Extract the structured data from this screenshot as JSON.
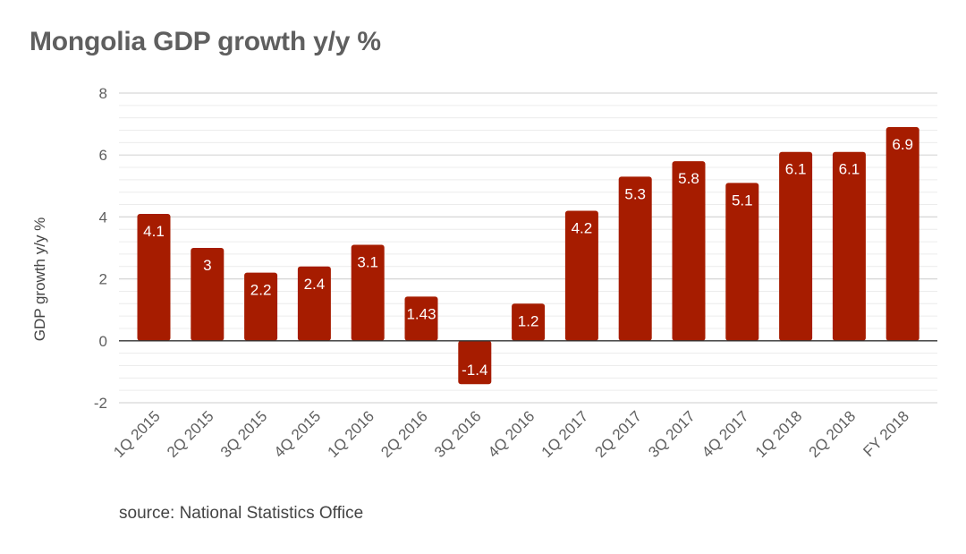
{
  "chart_data": {
    "type": "bar",
    "title": "Mongolia GDP growth y/y %",
    "ylabel": "GDP growth y/y %",
    "xlabel": "",
    "categories": [
      "1Q 2015",
      "2Q 2015",
      "3Q 2015",
      "4Q 2015",
      "1Q 2016",
      "2Q 2016",
      "3Q 2016",
      "4Q 2016",
      "1Q 2017",
      "2Q 2017",
      "3Q 2017",
      "4Q 2017",
      "1Q 2018",
      "2Q 2018",
      "FY 2018"
    ],
    "values": [
      4.1,
      3,
      2.2,
      2.4,
      3.1,
      1.43,
      -1.4,
      1.2,
      4.2,
      5.3,
      5.8,
      5.1,
      6.1,
      6.1,
      6.9
    ],
    "value_labels": [
      "4.1",
      "3",
      "2.2",
      "2.4",
      "3.1",
      "1.43",
      "-1.4",
      "1.2",
      "4.2",
      "5.3",
      "5.8",
      "5.1",
      "6.1",
      "6.1",
      "6.9"
    ],
    "ylim": [
      -2,
      8
    ],
    "yticks": [
      -2,
      0,
      2,
      4,
      6,
      8
    ],
    "ytick_labels": [
      "-2",
      "0",
      "2",
      "4",
      "6",
      "8"
    ],
    "grid": true,
    "legend": "none",
    "source": "source: National Statistics Office",
    "colors": {
      "bar": "#a61c00",
      "label_inside": "#ffffff",
      "label_outside": "#a61c00",
      "title": "#5f5f5f",
      "axis_text": "#5f5f5f",
      "gridline": "#e2e2e2",
      "zero_line": "#333333"
    }
  }
}
